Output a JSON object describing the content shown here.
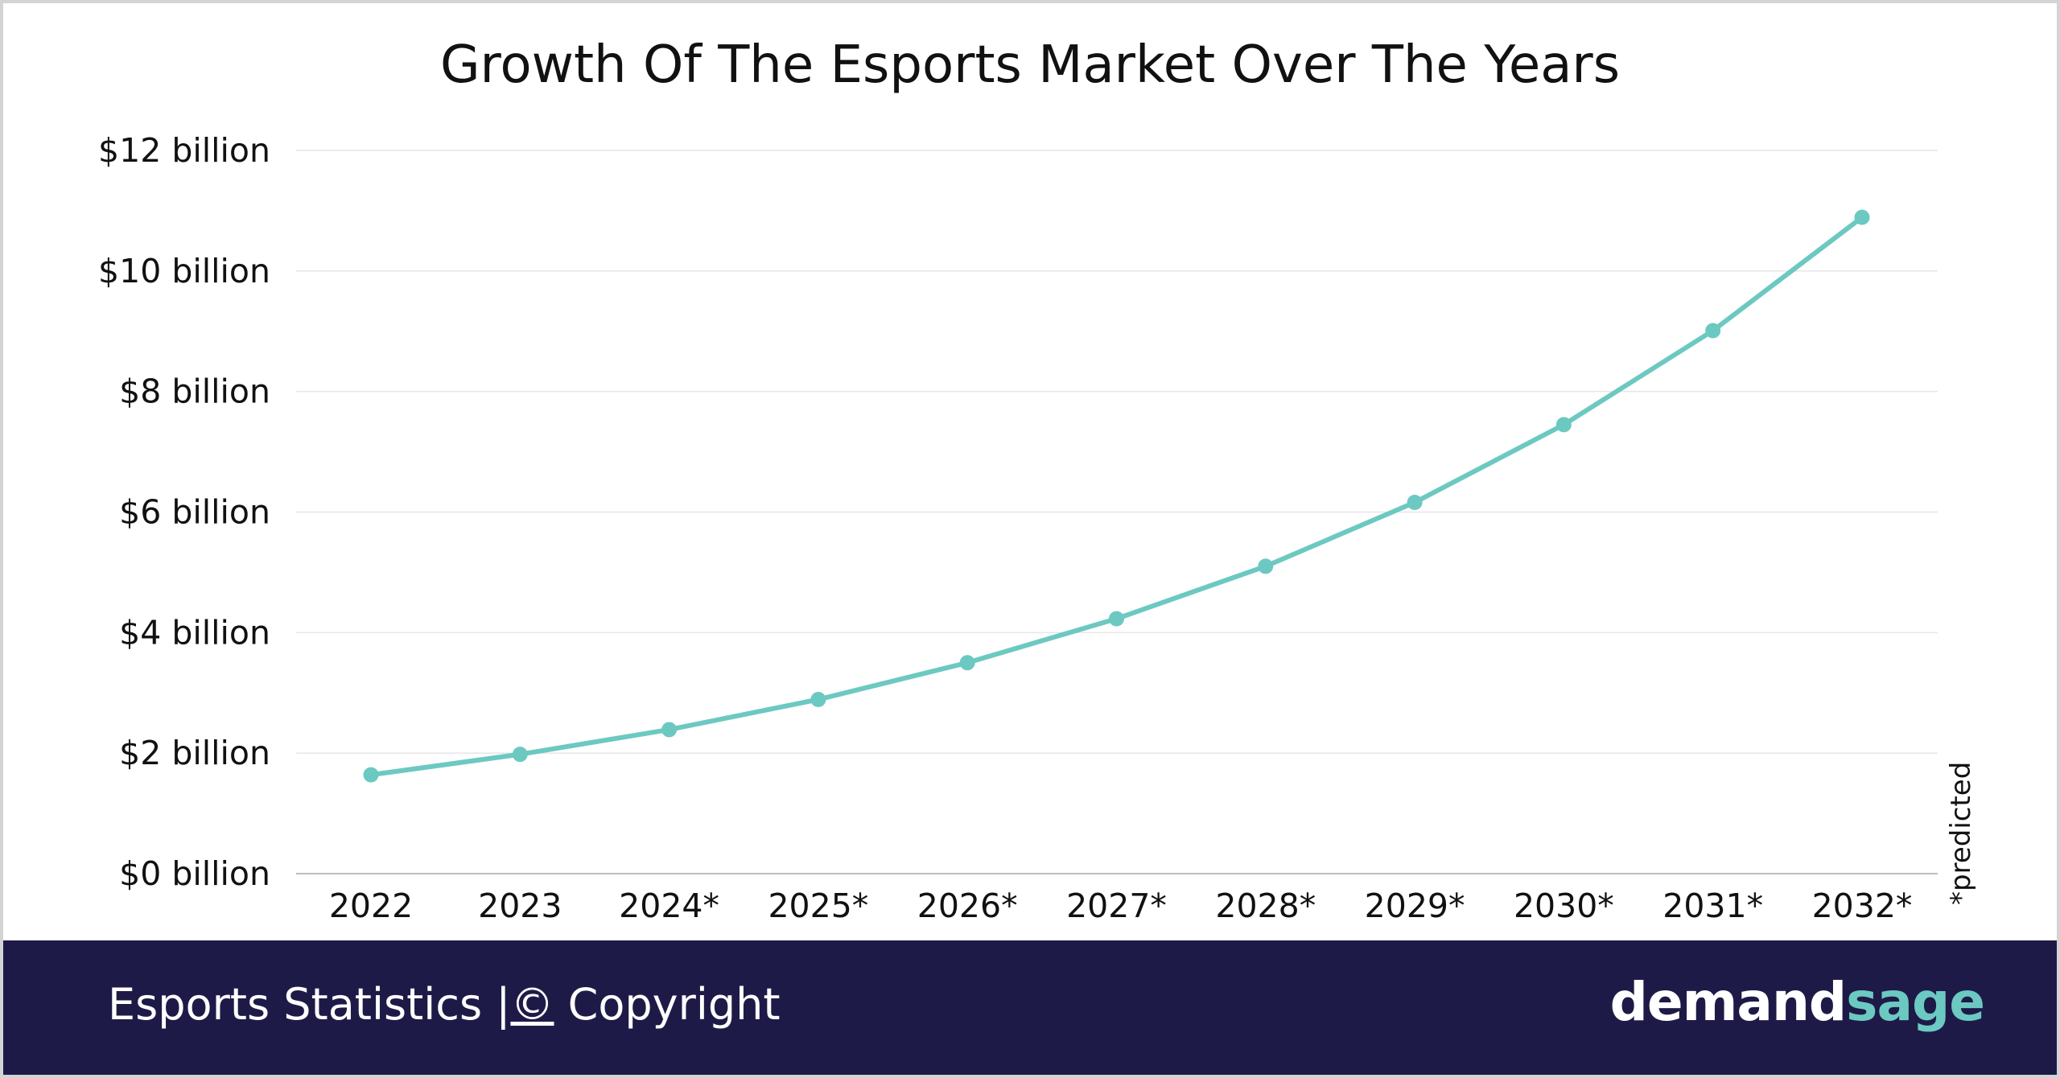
{
  "chart_data": {
    "type": "line",
    "title": "Growth Of The Esports Market Over The Years",
    "categories": [
      "2022",
      "2023",
      "2024*",
      "2025*",
      "2026*",
      "2027*",
      "2028*",
      "2029*",
      "2030*",
      "2031*",
      "2032*"
    ],
    "series": [
      {
        "values": [
          1.64,
          1.98,
          2.39,
          2.89,
          3.5,
          4.23,
          5.1,
          6.16,
          7.45,
          9.01,
          10.89
        ]
      }
    ],
    "yticks": [
      "$0 billion",
      "$2 billion",
      "$4 billion",
      "$6 billion",
      "$8 billion",
      "$10 billion",
      "$12 billion"
    ],
    "ylim": [
      0,
      12
    ],
    "grid": true,
    "note": "*predicted",
    "line_color": "#6cc9c1"
  },
  "footer": {
    "left_text": "Esports Statistics",
    "separator": "|",
    "copyright_symbol": "©",
    "copyright_text": "Copyright",
    "brand_primary": "demand",
    "brand_secondary": "sage",
    "background_color": "#1e1a48",
    "brand_accent_color": "#6cc9c1"
  }
}
